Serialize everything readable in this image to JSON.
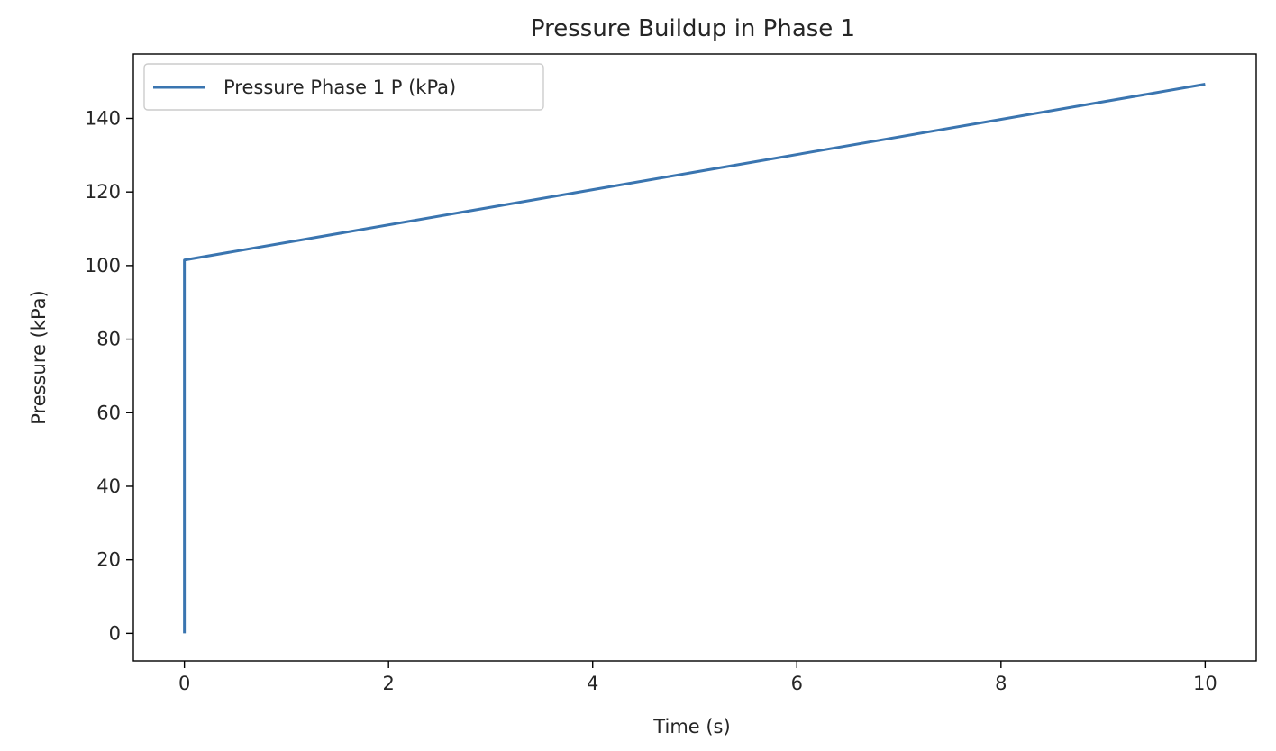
{
  "chart_data": {
    "type": "line",
    "title": "Pressure Buildup in Phase 1",
    "xlabel": "Time (s)",
    "ylabel": "Pressure (kPa)",
    "xlim": [
      -0.5,
      10.5
    ],
    "ylim": [
      -7.5,
      157.5
    ],
    "xticks": [
      0,
      2,
      4,
      6,
      8,
      10
    ],
    "yticks": [
      0,
      20,
      40,
      60,
      80,
      100,
      120,
      140
    ],
    "grid": false,
    "legend_position": "top-left",
    "series": [
      {
        "name": "Pressure Phase 1 P (kPa)",
        "color": "#3a75b0",
        "x": [
          0,
          0,
          10
        ],
        "y": [
          0,
          101.5,
          149.3
        ]
      }
    ]
  }
}
